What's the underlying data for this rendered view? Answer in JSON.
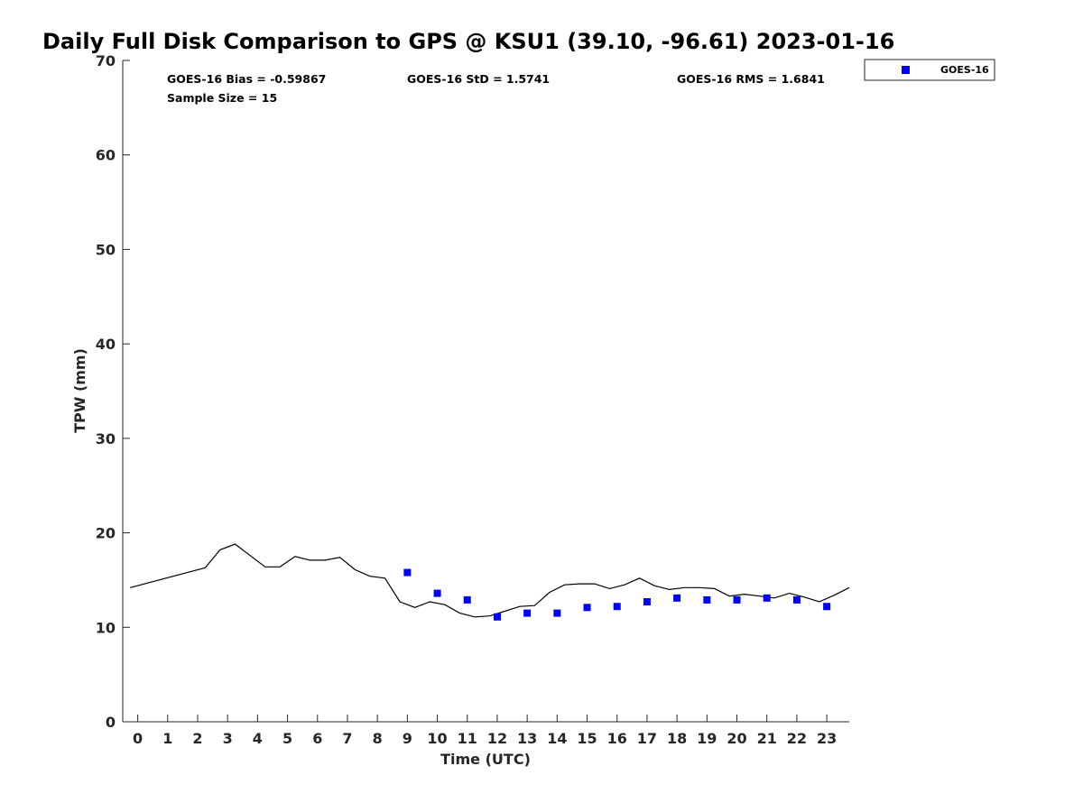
{
  "chart_data": {
    "type": "scatter",
    "title": "Daily Full Disk Comparison to GPS @ KSU1 (39.10, -96.61) 2023-01-16",
    "xlabel": "Time (UTC)",
    "ylabel": "TPW (mm)",
    "xlim": [
      -0.5,
      23.75
    ],
    "ylim": [
      0,
      70
    ],
    "x_ticks": [
      0,
      1,
      2,
      3,
      4,
      5,
      6,
      7,
      8,
      9,
      10,
      11,
      12,
      13,
      14,
      15,
      16,
      17,
      18,
      19,
      20,
      21,
      22,
      23
    ],
    "x_tick_labels": [
      "0",
      "1",
      "2",
      "3",
      "4",
      "5",
      "6",
      "7",
      "8",
      "9",
      "10",
      "11",
      "12",
      "13",
      "14",
      "15",
      "16",
      "17",
      "18",
      "19",
      "20",
      "21",
      "22",
      "23"
    ],
    "y_ticks": [
      0,
      10,
      20,
      30,
      40,
      50,
      60,
      70
    ],
    "y_tick_labels": [
      "0",
      "10",
      "20",
      "30",
      "40",
      "50",
      "60",
      "70"
    ],
    "grid": false,
    "legend_position": "top-right-outside",
    "stats": [
      "GOES-16 Bias = -0.59867",
      "GOES-16 StD = 1.5741",
      "GOES-16 RMS = 1.6841",
      "Sample Size = 15"
    ],
    "series": [
      {
        "name": "GOES-16",
        "kind": "scatter",
        "marker": "square",
        "color": "#0000ff",
        "x": [
          9,
          10,
          11,
          12,
          13,
          14,
          15,
          16,
          17,
          18,
          19,
          20,
          21,
          22,
          23
        ],
        "y": [
          15.8,
          13.6,
          12.9,
          11.1,
          11.5,
          11.5,
          12.1,
          12.2,
          12.7,
          13.1,
          12.9,
          12.9,
          13.1,
          12.9,
          12.2
        ]
      },
      {
        "kind": "line",
        "color": "#000000",
        "x": [
          -0.25,
          2.25,
          2.75,
          3.25,
          3.75,
          4.25,
          4.75,
          5.25,
          5.75,
          6.25,
          6.75,
          7.25,
          7.75,
          8.25,
          8.75,
          9.25,
          9.75,
          10.25,
          10.75,
          11.25,
          11.75,
          12.25,
          12.75,
          13.25,
          13.75,
          14.25,
          14.75,
          15.25,
          15.75,
          16.25,
          16.75,
          17.25,
          17.75,
          18.25,
          18.75,
          19.25,
          19.75,
          20.25,
          20.75,
          21.25,
          21.75,
          22.25,
          22.75,
          23.25,
          23.75
        ],
        "y": [
          14.2,
          16.3,
          18.2,
          18.8,
          17.6,
          16.4,
          16.4,
          17.5,
          17.1,
          17.1,
          17.4,
          16.1,
          15.4,
          15.2,
          12.7,
          12.1,
          12.7,
          12.4,
          11.5,
          11.1,
          11.2,
          11.7,
          12.2,
          12.3,
          13.7,
          14.5,
          14.6,
          14.6,
          14.1,
          14.5,
          15.2,
          14.4,
          14.0,
          14.2,
          14.2,
          14.1,
          13.3,
          13.5,
          13.3,
          13.1,
          13.6,
          13.2,
          12.7,
          13.4,
          14.2
        ]
      }
    ]
  }
}
